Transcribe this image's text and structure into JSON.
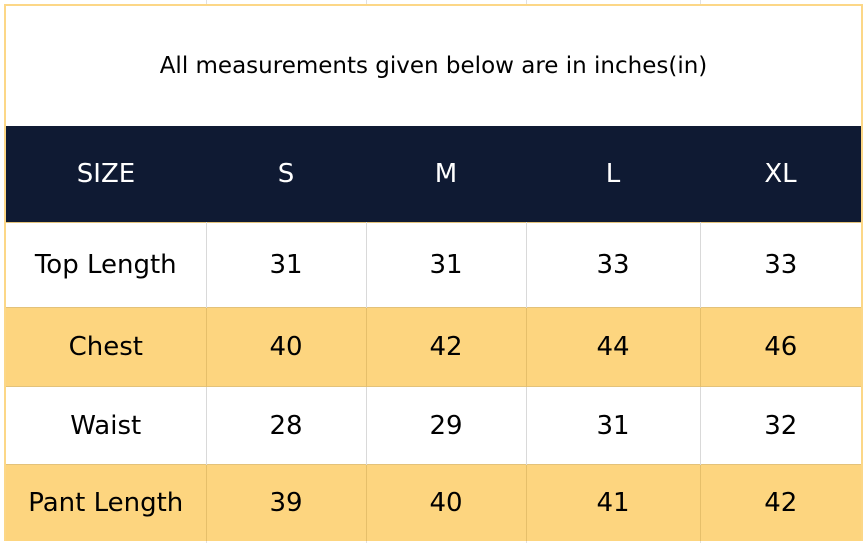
{
  "note": "All measurements given below are in inches(in)",
  "header": [
    "SIZE",
    "S",
    "M",
    "L",
    "XL"
  ],
  "rows": [
    {
      "label": "Top Length",
      "values": [
        "31",
        "31",
        "33",
        "33"
      ]
    },
    {
      "label": "Chest",
      "values": [
        "40",
        "42",
        "44",
        "46"
      ]
    },
    {
      "label": "Waist",
      "values": [
        "28",
        "29",
        "31",
        "32"
      ]
    },
    {
      "label": "Pant Length",
      "values": [
        "39",
        "40",
        "41",
        "42"
      ]
    }
  ],
  "colors": {
    "header_bg": "#0f1a33",
    "header_text": "#ffffff",
    "highlight_row": "#fdd57f",
    "frame_border": "#fcd787"
  }
}
